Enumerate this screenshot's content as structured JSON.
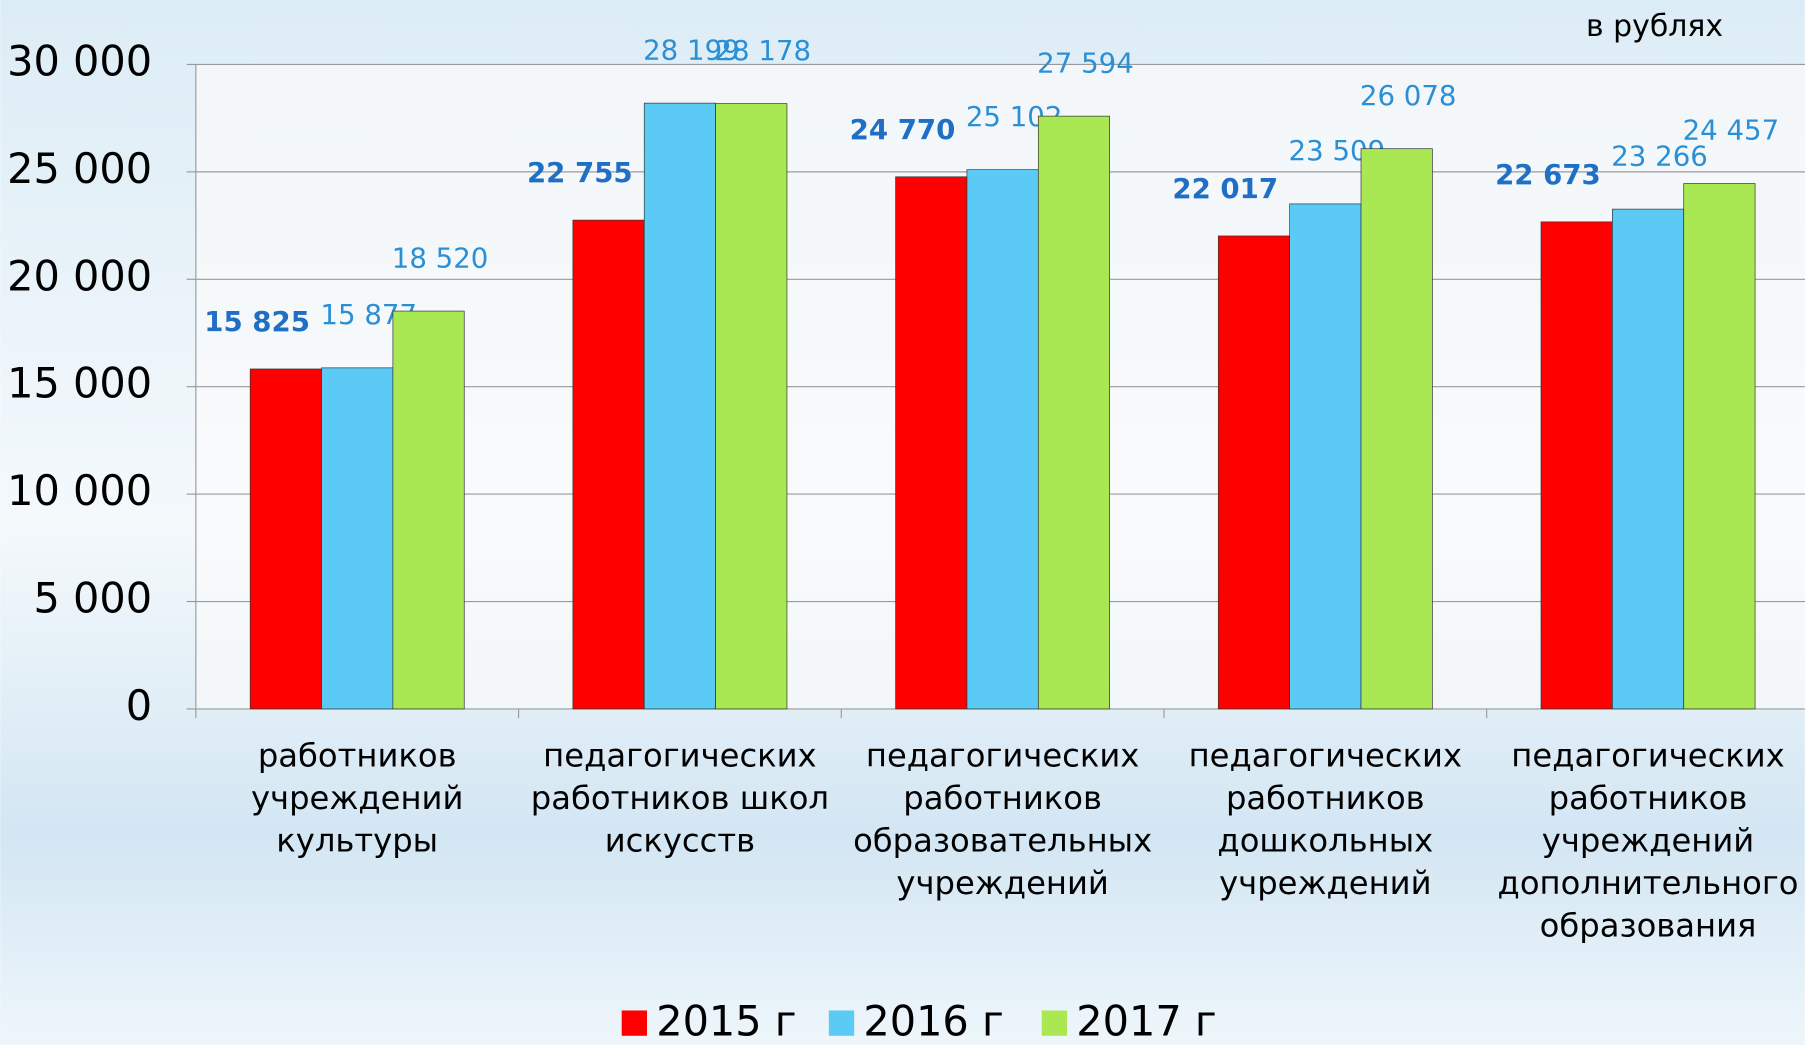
{
  "chart_data": {
    "type": "bar",
    "unit_note": "в рублях",
    "categories": [
      [
        "работников",
        "учреждений",
        "культуры"
      ],
      [
        "педагогических",
        "работников школ",
        "искусств"
      ],
      [
        "педагогических",
        "работников",
        "образовательных",
        "учреждений"
      ],
      [
        "педагогических",
        "работников",
        "дошкольных",
        "учреждений"
      ],
      [
        "педагогических",
        "работников",
        "учреждений",
        "дополнительного",
        "образования"
      ]
    ],
    "series": [
      {
        "name": "2015 г",
        "color": "#ff0000",
        "values": [
          15825,
          22755,
          24770,
          22017,
          22673
        ],
        "value_labels": [
          "15 825",
          "22 755",
          "24 770",
          "22 017",
          "22 673"
        ]
      },
      {
        "name": "2016 г",
        "color": "#5bcbf5",
        "values": [
          15877,
          28199,
          25102,
          23509,
          23266
        ],
        "value_labels": [
          "15 877",
          "28 199",
          "25 102",
          "23 509",
          "23 266"
        ]
      },
      {
        "name": "2017 г",
        "color": "#a9e853",
        "values": [
          18520,
          28178,
          27594,
          26078,
          24457
        ],
        "value_labels": [
          "18 520",
          "28 178",
          "27 594",
          "26 078",
          "24 457"
        ]
      }
    ],
    "ylim": [
      0,
      30000
    ],
    "yticks": [
      0,
      {
        "value": 5000,
        "label": "5 000"
      },
      {
        "value": 10000,
        "label": "10 000"
      },
      {
        "value": 15000,
        "label": "15 000"
      },
      {
        "value": 20000,
        "label": "20 000"
      },
      {
        "value": 25000,
        "label": "25 000"
      },
      {
        "value": 30000,
        "label": "30 000"
      }
    ],
    "grid": true,
    "legend": "bottom"
  }
}
